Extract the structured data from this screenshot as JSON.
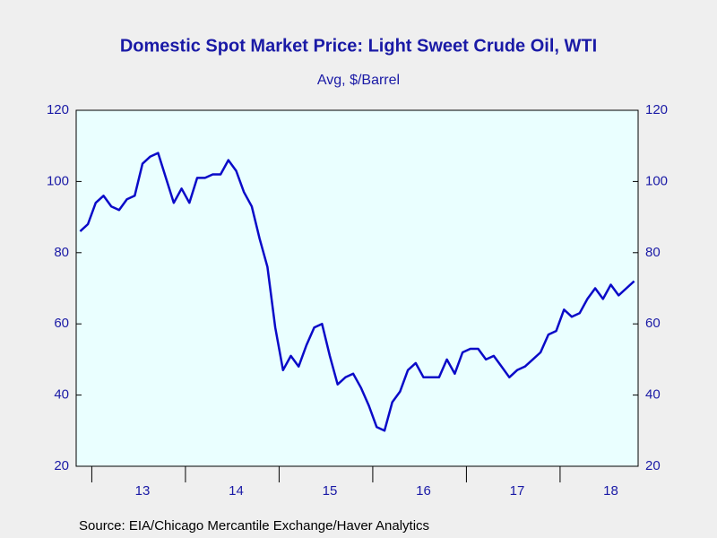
{
  "chart_data": {
    "type": "line",
    "title": "Domestic Spot Market Price: Light Sweet Crude Oil, WTI",
    "subtitle": "Avg, $/Barrel",
    "source": "Source:  EIA/Chicago Mercantile Exchange/Haver Analytics",
    "categories": [
      null,
      null,
      null,
      null,
      null,
      null,
      null,
      null,
      "13",
      null,
      null,
      null,
      null,
      null,
      null,
      null,
      null,
      null,
      null,
      null,
      "14",
      null,
      null,
      null,
      null,
      null,
      null,
      null,
      null,
      null,
      null,
      null,
      "15",
      null,
      null,
      null,
      null,
      null,
      null,
      null,
      null,
      null,
      null,
      null,
      "16",
      null,
      null,
      null,
      null,
      null,
      null,
      null,
      null,
      null,
      null,
      null,
      "17",
      null,
      null,
      null,
      null,
      null,
      null,
      null,
      null,
      null,
      null,
      null,
      "18",
      null,
      null,
      null
    ],
    "series": [
      {
        "name": "WTI",
        "color": "#0a0ac8",
        "values": [
          86,
          88,
          94,
          96,
          93,
          92,
          95,
          96,
          105,
          107,
          108,
          101,
          94,
          98,
          94,
          101,
          101,
          102,
          102,
          106,
          103,
          97,
          93,
          84,
          76,
          59,
          47,
          51,
          48,
          54,
          59,
          60,
          51,
          43,
          45,
          46,
          42,
          37,
          31,
          30,
          38,
          41,
          47,
          49,
          45,
          45,
          45,
          50,
          46,
          52,
          53,
          53,
          50,
          51,
          48,
          45,
          47,
          48,
          50,
          52,
          57,
          58,
          64,
          62,
          63,
          67,
          70,
          67,
          71,
          68,
          70,
          72
        ]
      }
    ],
    "ylim": [
      20,
      120
    ],
    "yticks": [
      20,
      40,
      60,
      80,
      100,
      120
    ]
  }
}
